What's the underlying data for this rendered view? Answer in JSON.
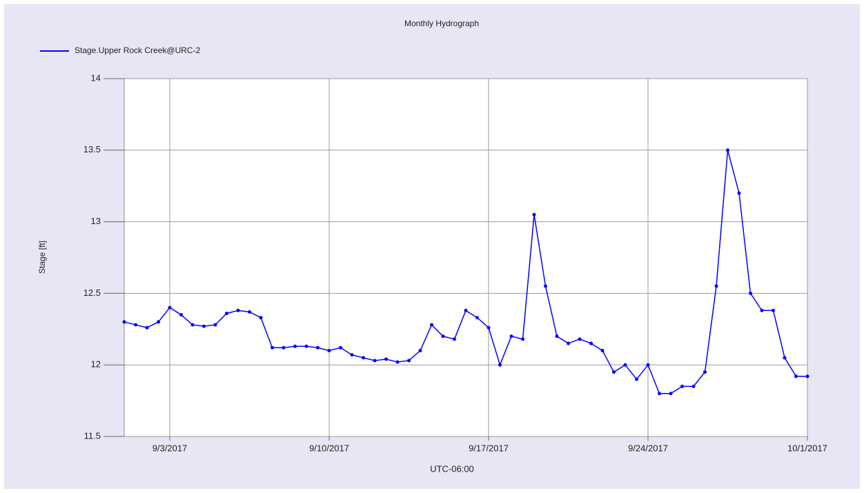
{
  "chart_data": {
    "type": "line",
    "title": "Monthly Hydrograph",
    "xlabel": "UTC-06:00",
    "ylabel": "Stage [ft]",
    "x": [
      "2017-09-01T00:00",
      "2017-09-01T12:00",
      "2017-09-02T00:00",
      "2017-09-02T12:00",
      "2017-09-03T00:00",
      "2017-09-03T12:00",
      "2017-09-04T00:00",
      "2017-09-04T12:00",
      "2017-09-05T00:00",
      "2017-09-05T12:00",
      "2017-09-06T00:00",
      "2017-09-06T12:00",
      "2017-09-07T00:00",
      "2017-09-07T12:00",
      "2017-09-08T00:00",
      "2017-09-08T12:00",
      "2017-09-09T00:00",
      "2017-09-09T12:00",
      "2017-09-10T00:00",
      "2017-09-10T12:00",
      "2017-09-11T00:00",
      "2017-09-11T12:00",
      "2017-09-12T00:00",
      "2017-09-12T12:00",
      "2017-09-13T00:00",
      "2017-09-13T12:00",
      "2017-09-14T00:00",
      "2017-09-14T12:00",
      "2017-09-15T00:00",
      "2017-09-15T12:00",
      "2017-09-16T00:00",
      "2017-09-16T12:00",
      "2017-09-17T00:00",
      "2017-09-17T12:00",
      "2017-09-18T00:00",
      "2017-09-18T12:00",
      "2017-09-19T00:00",
      "2017-09-19T12:00",
      "2017-09-20T00:00",
      "2017-09-20T12:00",
      "2017-09-21T00:00",
      "2017-09-21T12:00",
      "2017-09-22T00:00",
      "2017-09-22T12:00",
      "2017-09-23T00:00",
      "2017-09-23T12:00",
      "2017-09-24T00:00",
      "2017-09-24T12:00",
      "2017-09-25T00:00",
      "2017-09-25T12:00",
      "2017-09-26T00:00",
      "2017-09-26T12:00",
      "2017-09-27T00:00",
      "2017-09-27T12:00",
      "2017-09-28T00:00",
      "2017-09-28T12:00",
      "2017-09-29T00:00",
      "2017-09-29T12:00",
      "2017-09-30T00:00",
      "2017-09-30T12:00",
      "2017-10-01T00:00"
    ],
    "series": [
      {
        "name": "Stage.Upper Rock Creek@URC-2",
        "color": "#0000ff",
        "values": [
          12.3,
          12.28,
          12.26,
          12.3,
          12.4,
          12.35,
          12.28,
          12.27,
          12.28,
          12.36,
          12.38,
          12.37,
          12.33,
          12.12,
          12.12,
          12.13,
          12.13,
          12.12,
          12.1,
          12.12,
          12.07,
          12.05,
          12.03,
          12.04,
          12.02,
          12.03,
          12.1,
          12.28,
          12.2,
          12.18,
          12.38,
          12.33,
          12.26,
          12.0,
          12.2,
          12.18,
          13.05,
          12.55,
          12.2,
          12.15,
          12.18,
          12.15,
          12.1,
          11.95,
          12.0,
          11.9,
          12.0,
          11.8,
          11.8,
          11.85,
          11.85,
          11.95,
          12.55,
          13.5,
          13.2,
          12.5,
          12.38,
          12.38,
          12.05,
          11.92,
          11.92
        ]
      }
    ],
    "xlim": [
      "2017-09-01T00:00",
      "2017-10-01T00:00"
    ],
    "xticks": [
      {
        "value": "2017-09-03",
        "label": "9/3/2017"
      },
      {
        "value": "2017-09-10",
        "label": "9/10/2017"
      },
      {
        "value": "2017-09-17",
        "label": "9/17/2017"
      },
      {
        "value": "2017-09-24",
        "label": "9/24/2017"
      },
      {
        "value": "2017-10-01",
        "label": "10/1/2017"
      }
    ],
    "ylim": [
      11.5,
      14
    ],
    "yticks": [
      11.5,
      12,
      12.5,
      13,
      13.5,
      14
    ],
    "grid": true,
    "legend": "top-left"
  }
}
